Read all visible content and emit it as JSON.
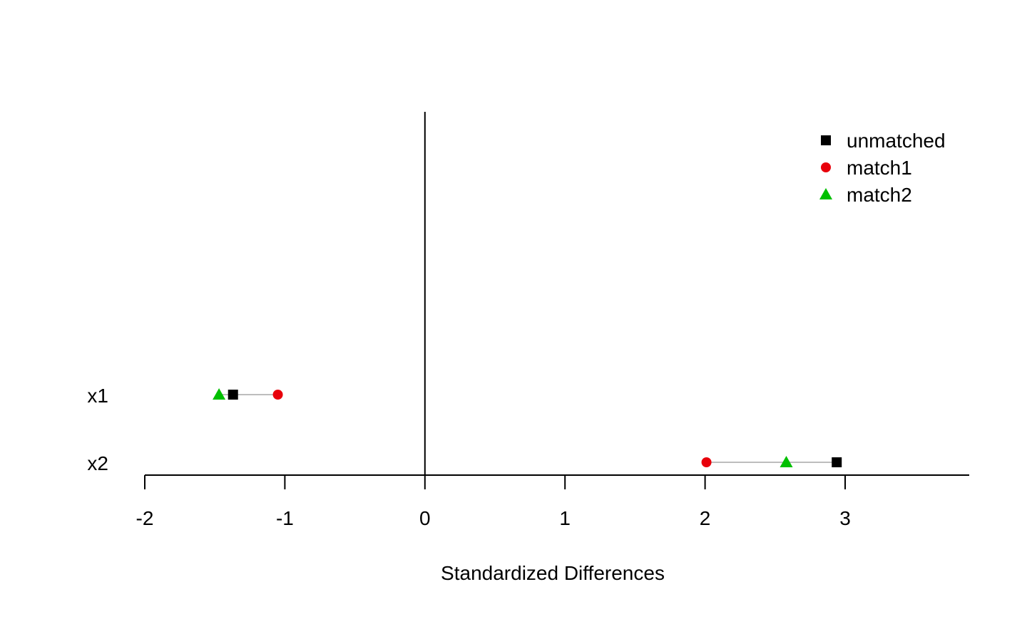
{
  "chart_data": {
    "type": "scatter",
    "title": "",
    "xlabel": "Standardized Differences",
    "ylabel": "",
    "xlim": [
      -2,
      3.85
    ],
    "xticks": [
      -2,
      -1,
      0,
      1,
      2,
      3
    ],
    "categories": [
      "x1",
      "x2"
    ],
    "reference_line_x": 0,
    "grid": false,
    "legend_position": "top-right",
    "series": [
      {
        "name": "unmatched",
        "marker": "square",
        "color": "#000000",
        "values": [
          -1.37,
          2.94
        ]
      },
      {
        "name": "match1",
        "marker": "circle",
        "color": "#e8000b",
        "values": [
          -1.05,
          2.01
        ]
      },
      {
        "name": "match2",
        "marker": "triangle",
        "color": "#00c000",
        "values": [
          -1.47,
          2.58
        ]
      }
    ],
    "connector_color": "#bdbdbd"
  }
}
